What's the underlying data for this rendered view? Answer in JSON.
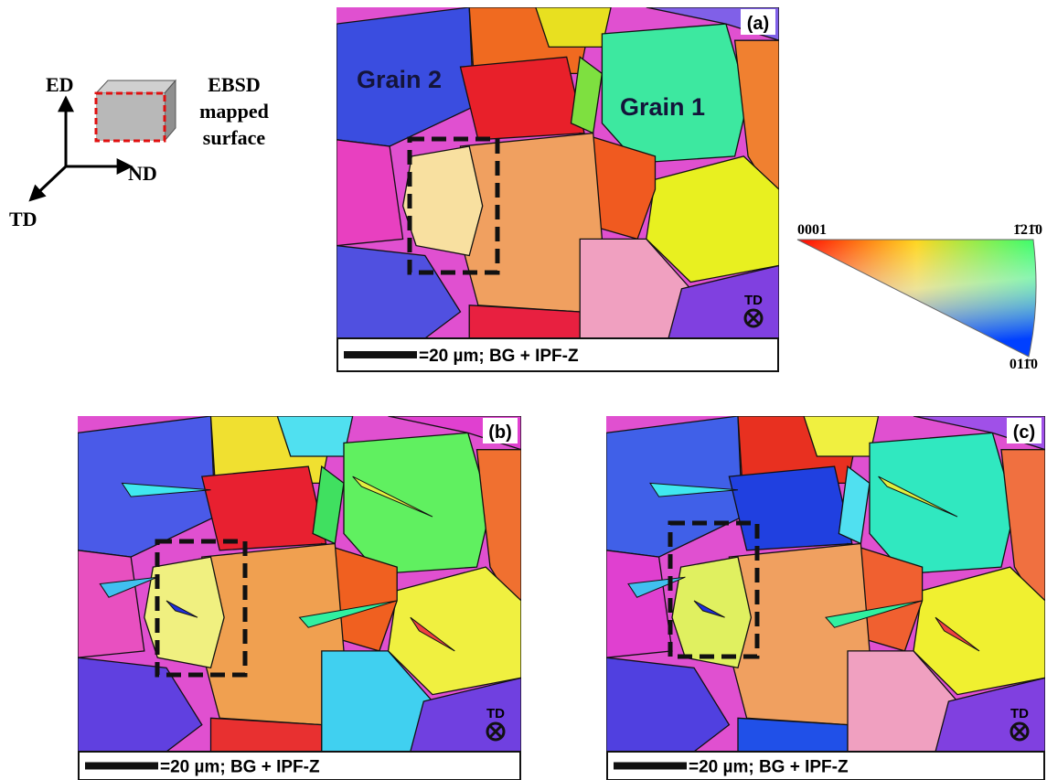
{
  "axes_key": {
    "ed": "ED",
    "nd": "ND",
    "td": "TD"
  },
  "surface_label": [
    "EBSD",
    "mapped",
    "surface"
  ],
  "panels": [
    {
      "label": "(a)",
      "grain_labels": [
        "Grain 2",
        "Grain 1"
      ],
      "direction": "TD",
      "scale_bar": "=20 µm; BG + IPF-Z"
    },
    {
      "label": "(b)",
      "direction": "TD",
      "scale_bar": "=20 µm; BG + IPF-Z"
    },
    {
      "label": "(c)",
      "direction": "TD",
      "scale_bar": "=20 µm; BG + IPF-Z"
    }
  ],
  "ipf_key": {
    "left": "0001",
    "right": "1̄21̄0",
    "bottom": "011̄0"
  }
}
